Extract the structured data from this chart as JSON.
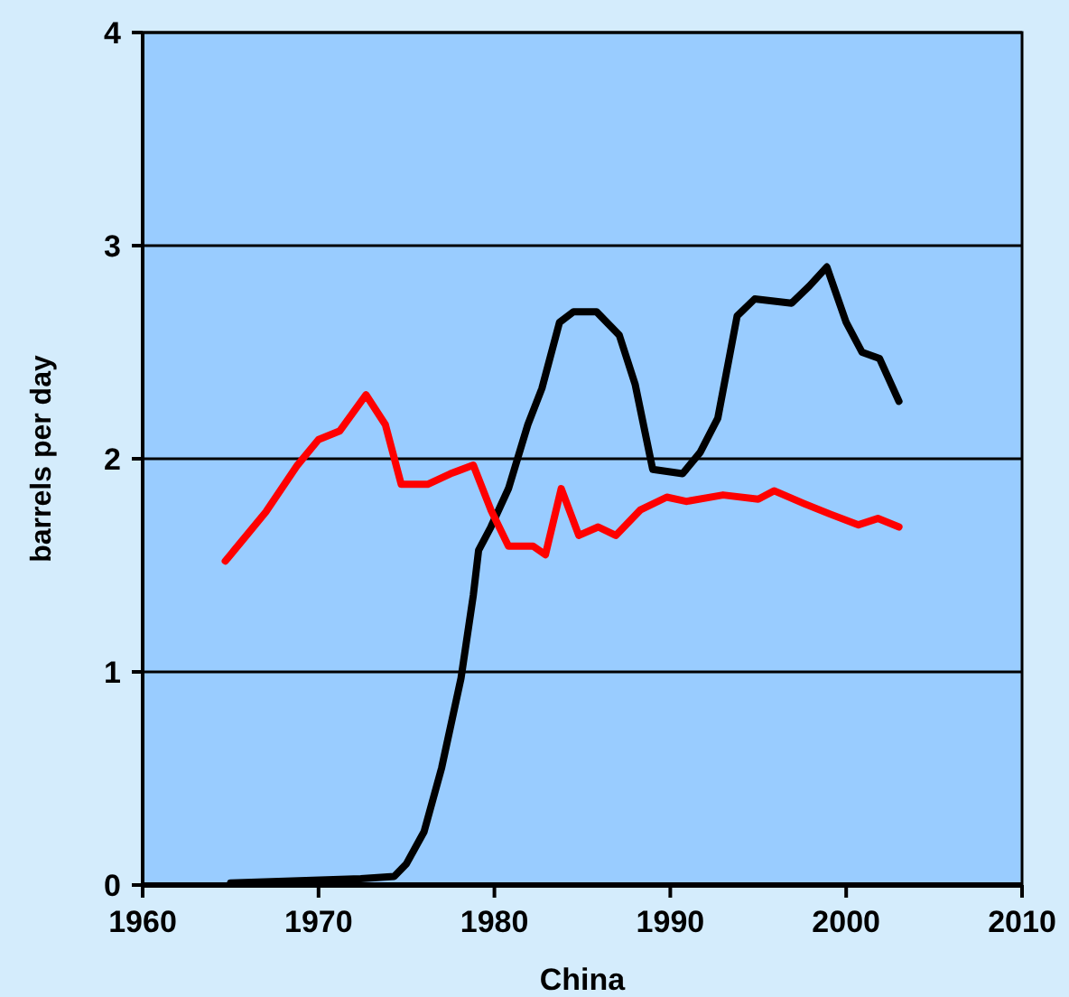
{
  "chart_data": {
    "type": "line",
    "xlabel": "China",
    "ylabel": "barrels per day",
    "xlim": [
      1960,
      2010
    ],
    "xticks": [
      1960,
      1970,
      1980,
      1990,
      2000,
      2010
    ],
    "ylim": [
      0,
      4
    ],
    "yticks": [
      0,
      1,
      2,
      3,
      4
    ],
    "grid": "y",
    "marker": "none",
    "line_style": "solid",
    "series": [
      {
        "color": "#000000",
        "x": [
          1965,
          1972.4,
          1974.3,
          1975,
          1976,
          1977,
          1978.1,
          1978.8,
          1979.1,
          1979.8,
          1980.8,
          1981.9,
          1982.7,
          1983.7,
          1984.5,
          1985.8,
          1987.1,
          1988,
          1989,
          1990.7,
          1991.7,
          1992.7,
          1993.8,
          1994.8,
          1996.9,
          1997.9,
          1998.9,
          2000,
          2000.9,
          2001.9,
          2003
        ],
        "values": [
          0.01,
          0.03,
          0.04,
          0.1,
          0.25,
          0.55,
          0.97,
          1.36,
          1.57,
          1.68,
          1.86,
          2.16,
          2.33,
          2.64,
          2.69,
          2.69,
          2.58,
          2.35,
          1.95,
          1.93,
          2.03,
          2.19,
          2.67,
          2.75,
          2.73,
          2.81,
          2.9,
          2.64,
          2.5,
          2.47,
          2.27
        ]
      },
      {
        "color": "#ff0000",
        "x": [
          1964.7,
          1966,
          1967,
          1968.8,
          1970,
          1971.2,
          1972.7,
          1973.8,
          1974.7,
          1976.2,
          1977.5,
          1978.8,
          1979.8,
          1980.8,
          1982.2,
          1982.9,
          1983.8,
          1984.8,
          1985.9,
          1986.9,
          1988.3,
          1989.8,
          1990.9,
          1993,
          1995,
          1995.9,
          1997.6,
          1999.1,
          2000.7,
          2001.8,
          2003
        ],
        "values": [
          1.52,
          1.65,
          1.75,
          1.97,
          2.09,
          2.13,
          2.3,
          2.16,
          1.88,
          1.88,
          1.93,
          1.97,
          1.76,
          1.59,
          1.59,
          1.55,
          1.86,
          1.64,
          1.68,
          1.64,
          1.76,
          1.82,
          1.8,
          1.83,
          1.81,
          1.85,
          1.79,
          1.74,
          1.69,
          1.72,
          1.68
        ]
      }
    ]
  }
}
